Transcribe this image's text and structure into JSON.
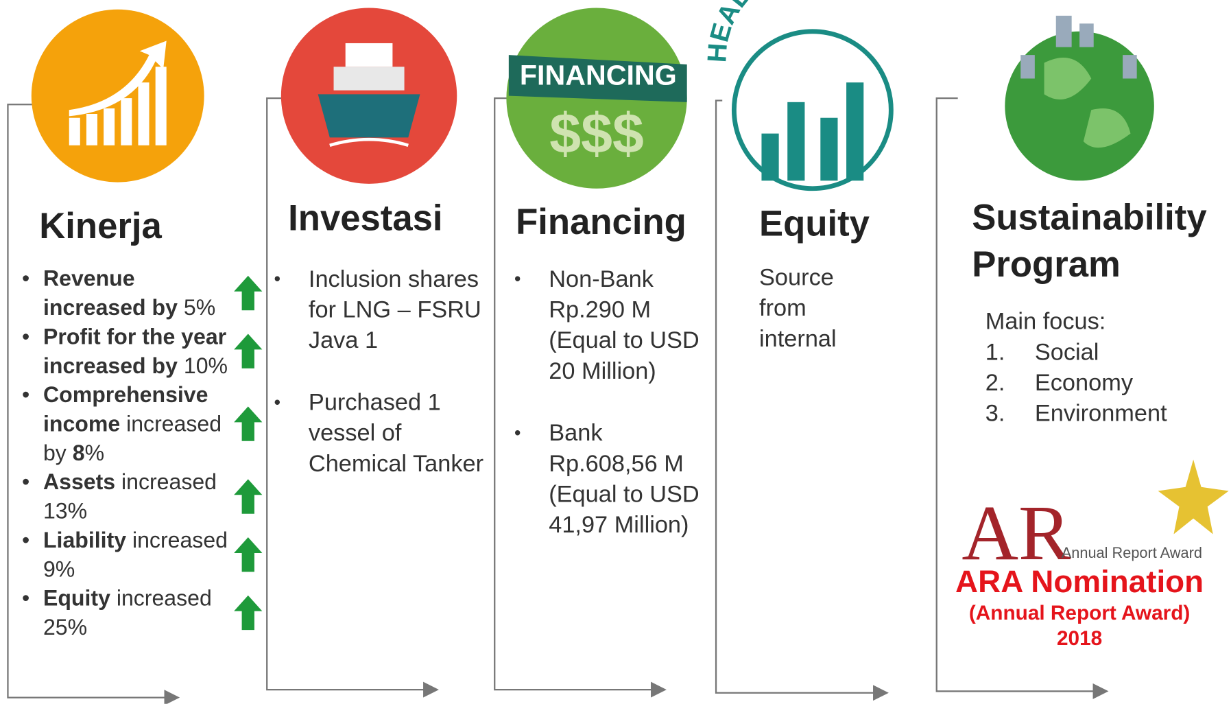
{
  "columns": [
    {
      "title": "Kinerja",
      "items": [
        [
          {
            "text": "Revenue increased by",
            "bold": true
          },
          {
            "text": " 5%",
            "bold": false
          }
        ],
        [
          {
            "text": "Profit for the year increased by",
            "bold": true
          },
          {
            "text": " 10%",
            "bold": false
          }
        ],
        [
          {
            "text": "Comprehensive income",
            "bold": true
          },
          {
            "text": " increased by ",
            "bold": false
          },
          {
            "text": "8",
            "bold": true
          },
          {
            "text": "%",
            "bold": false
          }
        ],
        [
          {
            "text": "Assets",
            "bold": true
          },
          {
            "text": " increased 13%",
            "bold": false
          }
        ],
        [
          {
            "text": "Liability",
            "bold": true
          },
          {
            "text": " increased 9%",
            "bold": false
          }
        ],
        [
          {
            "text": "Equity",
            "bold": true
          },
          {
            "text": " increased 25%",
            "bold": false
          }
        ]
      ]
    },
    {
      "title": "Investasi",
      "items": [
        [
          {
            "text": "Inclusion shares for LNG – FSRU Java 1",
            "bold": false
          }
        ],
        [
          {
            "text": "Purchased 1 vessel of Chemical Tanker",
            "bold": false
          }
        ]
      ]
    },
    {
      "title": "Financing",
      "icon_text": [
        "FINANCING",
        "$$$"
      ],
      "items": [
        [
          {
            "text": "Non-Bank Rp.290 M (Equal to USD 20 Million)",
            "bold": false
          }
        ],
        [
          {
            "text": "Bank Rp.608,56 M (Equal to USD 41,97 Million)",
            "bold": false
          }
        ]
      ]
    },
    {
      "title": "Equity",
      "icon_text": "HEALTH EQUITY",
      "text": "Source from internal"
    },
    {
      "title_lines": [
        "Sustainability",
        "Program"
      ],
      "focus_label": "Main focus:",
      "focus": [
        {
          "num": "1.",
          "text": "Social"
        },
        {
          "num": "2.",
          "text": "Economy"
        },
        {
          "num": "3.",
          "text": "Environment"
        }
      ],
      "award": {
        "logo": "AR",
        "logo_caption": "Annual Report Award",
        "heading": "ARA Nomination",
        "sub": "(Annual Report Award)",
        "year": "2018"
      }
    }
  ]
}
